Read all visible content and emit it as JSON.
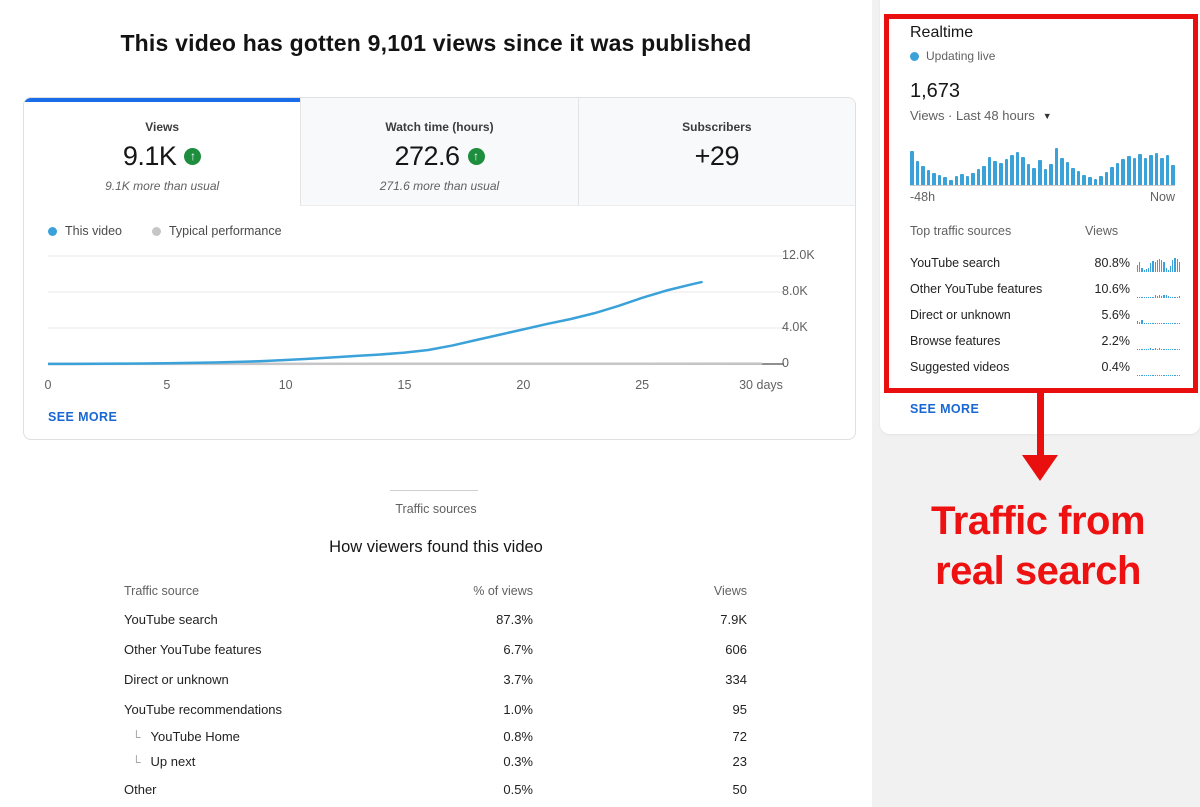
{
  "banner": "This video has gotten 9,101 views since it was published",
  "tabs": [
    {
      "label": "Views",
      "value": "9.1K",
      "delta": "9.1K more than usual"
    },
    {
      "label": "Watch time (hours)",
      "value": "272.6",
      "delta": "271.6 more than usual"
    },
    {
      "label": "Subscribers",
      "value": "+29",
      "delta": ""
    }
  ],
  "legend": {
    "this_video": "This video",
    "typical": "Typical performance"
  },
  "see_more": "SEE MORE",
  "chart_data": [
    {
      "type": "line",
      "title": "Video views over time (cumulative)",
      "xlabel": "days",
      "ylabel": "Views",
      "xlim": [
        0,
        30
      ],
      "ylim": [
        0,
        12000
      ],
      "grid": true,
      "xticks": [
        {
          "v": 0,
          "label": "0"
        },
        {
          "v": 5,
          "label": "5"
        },
        {
          "v": 10,
          "label": "10"
        },
        {
          "v": 15,
          "label": "15"
        },
        {
          "v": 20,
          "label": "20"
        },
        {
          "v": 25,
          "label": "25"
        },
        {
          "v": 30,
          "label": "30 days"
        }
      ],
      "yticks": [
        {
          "v": 0,
          "label": "0"
        },
        {
          "v": 4000,
          "label": "4.0K"
        },
        {
          "v": 8000,
          "label": "8.0K"
        },
        {
          "v": 12000,
          "label": "12.0K"
        }
      ],
      "series": [
        {
          "name": "This video",
          "color": "#3aa2d9",
          "points": [
            [
              0,
              15
            ],
            [
              1,
              20
            ],
            [
              2,
              30
            ],
            [
              3,
              40
            ],
            [
              4,
              55
            ],
            [
              5,
              80
            ],
            [
              6,
              120
            ],
            [
              7,
              170
            ],
            [
              8,
              235
            ],
            [
              9,
              320
            ],
            [
              10,
              450
            ],
            [
              11,
              580
            ],
            [
              12,
              730
            ],
            [
              13,
              900
            ],
            [
              14,
              1060
            ],
            [
              15,
              1260
            ],
            [
              16,
              1560
            ],
            [
              17,
              2050
            ],
            [
              18,
              2650
            ],
            [
              19,
              3250
            ],
            [
              20,
              3850
            ],
            [
              21,
              4450
            ],
            [
              22,
              5000
            ],
            [
              23,
              5650
            ],
            [
              24,
              6450
            ],
            [
              25,
              7350
            ],
            [
              26,
              8150
            ],
            [
              27,
              8800
            ],
            [
              27.5,
              9101
            ]
          ]
        },
        {
          "name": "Typical performance",
          "color": "#c6c6c6",
          "points": [
            [
              0,
              5
            ],
            [
              30,
              40
            ]
          ]
        }
      ]
    },
    {
      "type": "bar",
      "title": "Realtime views, last 48 hours",
      "x_left_label": "-48h",
      "x_right_label": "Now",
      "ylim": [
        0,
        100
      ],
      "values_pct": [
        88,
        62,
        50,
        38,
        30,
        26,
        20,
        12,
        22,
        28,
        22,
        32,
        42,
        48,
        72,
        62,
        56,
        66,
        78,
        84,
        72,
        54,
        44,
        64,
        40,
        54,
        96,
        70,
        58,
        44,
        36,
        26,
        20,
        16,
        24,
        34,
        46,
        56,
        66,
        74,
        70,
        80,
        70,
        76,
        82,
        70,
        78,
        52
      ]
    }
  ],
  "sources_section": {
    "kicker": "Traffic sources",
    "heading": "How viewers found this video",
    "columns": [
      "Traffic source",
      "% of views",
      "Views"
    ],
    "rows": [
      {
        "label": "YouTube search",
        "pct": "87.3%",
        "views": "7.9K",
        "sub": false
      },
      {
        "label": "Other YouTube features",
        "pct": "6.7%",
        "views": "606",
        "sub": false
      },
      {
        "label": "Direct or unknown",
        "pct": "3.7%",
        "views": "334",
        "sub": false
      },
      {
        "label": "YouTube recommendations",
        "pct": "1.0%",
        "views": "95",
        "sub": false
      },
      {
        "label": "YouTube Home",
        "pct": "0.8%",
        "views": "72",
        "sub": true
      },
      {
        "label": "Up next",
        "pct": "0.3%",
        "views": "23",
        "sub": true
      },
      {
        "label": "Other",
        "pct": "0.5%",
        "views": "50",
        "sub": false
      }
    ]
  },
  "realtime": {
    "title": "Realtime",
    "updating": "Updating live",
    "count": "1,673",
    "range_label": "Views · Last 48 hours",
    "axis_left": "-48h",
    "axis_right": "Now",
    "top_sources": {
      "col_source": "Top traffic sources",
      "col_views": "Views",
      "rows": [
        {
          "label": "YouTube search",
          "pct": "80.8%",
          "spark": [
            38,
            55,
            22,
            10,
            14,
            22,
            50,
            62,
            56,
            68,
            72,
            64,
            58,
            20,
            10,
            36,
            64,
            78,
            70,
            58
          ]
        },
        {
          "label": "Other YouTube features",
          "pct": "10.6%",
          "spark": [
            6,
            4,
            5,
            3,
            4,
            6,
            5,
            8,
            14,
            10,
            16,
            12,
            18,
            14,
            10,
            6,
            5,
            8,
            6,
            10
          ]
        },
        {
          "label": "Direct or unknown",
          "pct": "5.6%",
          "spark": [
            18,
            10,
            22,
            8,
            6,
            4,
            5,
            3,
            4,
            3,
            5,
            4,
            3,
            5,
            4,
            3,
            4,
            5,
            3,
            4
          ]
        },
        {
          "label": "Browse features",
          "pct": "2.2%",
          "spark": [
            4,
            5,
            3,
            6,
            4,
            8,
            10,
            6,
            12,
            8,
            10,
            6,
            4,
            5,
            3,
            6,
            4,
            8,
            5,
            6
          ]
        },
        {
          "label": "Suggested videos",
          "pct": "0.4%",
          "spark": [
            3,
            4,
            2,
            3,
            4,
            3,
            5,
            3,
            4,
            3,
            4,
            5,
            3,
            4,
            3,
            4,
            3,
            5,
            3,
            4
          ]
        }
      ]
    },
    "see_more": "SEE MORE"
  },
  "annotation": {
    "line1": "Traffic from",
    "line2": "real search"
  },
  "colors": {
    "accent_blue": "#1a6ce8",
    "link_blue": "#1967d2",
    "chart_blue": "#3aa2d9",
    "typical_gray": "#c6c6c6",
    "up_green": "#1e8e3e",
    "annotation_red": "#e90f0f",
    "secondary_text": "#616161"
  }
}
